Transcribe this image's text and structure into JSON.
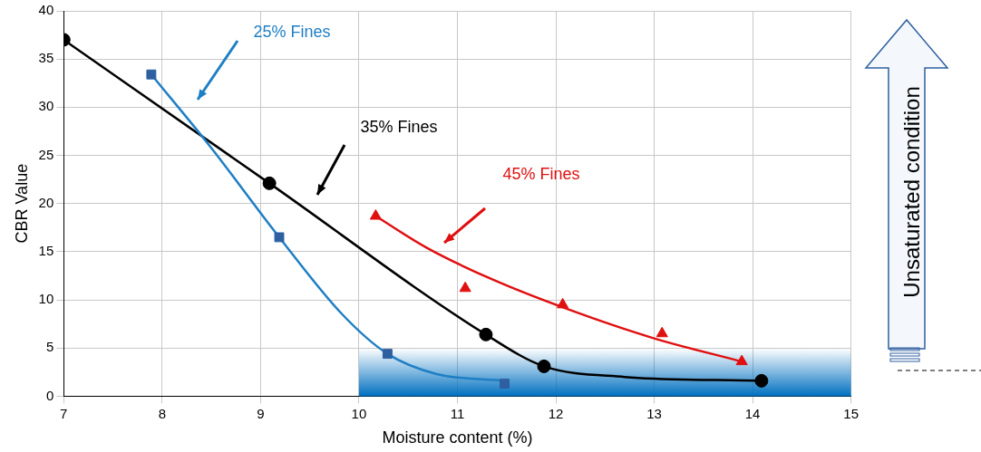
{
  "chart_data": {
    "type": "scatter",
    "xlabel": "Moisture content (%)",
    "ylabel": "CBR Value",
    "xlim": [
      7,
      15
    ],
    "xticks": [
      7,
      8,
      9,
      10,
      11,
      12,
      13,
      14,
      15
    ],
    "ylim": [
      0,
      40
    ],
    "yticks": [
      0,
      5,
      10,
      15,
      20,
      25,
      30,
      35,
      40
    ],
    "grid": true,
    "series": [
      {
        "type": "line",
        "color": "#1f7fc4",
        "marker": "none",
        "x": [
          7.89,
          8.49,
          9.19,
          9.83,
          10.29,
          10.79,
          11.48
        ],
        "values": [
          33.4,
          25.9,
          16.5,
          8.5,
          4.4,
          2.3,
          1.6
        ]
      },
      {
        "type": "line",
        "color": "#000000",
        "marker": "none",
        "x": [
          7,
          9.09,
          11.29,
          11.88,
          12.7,
          14.09
        ],
        "values": [
          37,
          22.1,
          6.4,
          3.1,
          2.0,
          1.6
        ]
      },
      {
        "type": "line",
        "color": "#e01010",
        "marker": "none",
        "x": [
          10.17,
          10.69,
          11.36,
          12.13,
          13.0,
          13.89
        ],
        "values": [
          18.7,
          15.4,
          12.1,
          9.0,
          6.0,
          3.6
        ]
      },
      {
        "type": "scatter",
        "color": "#2e5fa0",
        "marker": "square",
        "x": [
          7.89,
          9.19,
          10.29,
          11.48
        ],
        "values": [
          33.4,
          16.5,
          4.4,
          1.3
        ]
      },
      {
        "type": "scatter",
        "color": "#000000",
        "marker": "circle",
        "x": [
          7,
          9.09,
          11.29,
          11.88,
          14.09
        ],
        "values": [
          37,
          22.1,
          6.4,
          3.1,
          1.6
        ]
      },
      {
        "type": "scatter",
        "color": "#e01010",
        "marker": "triangle",
        "x": [
          10.17,
          11.08,
          12.07,
          13.08,
          13.89
        ],
        "values": [
          18.7,
          11.2,
          9.5,
          6.5,
          3.6
        ]
      }
    ],
    "bands": [
      {
        "axis": "x",
        "from": 10,
        "to": 15,
        "color": "#0070c0"
      }
    ],
    "annotations": [
      "25% Fines",
      "35% Fines",
      "45% Fines",
      "Unsaturated condition"
    ]
  }
}
